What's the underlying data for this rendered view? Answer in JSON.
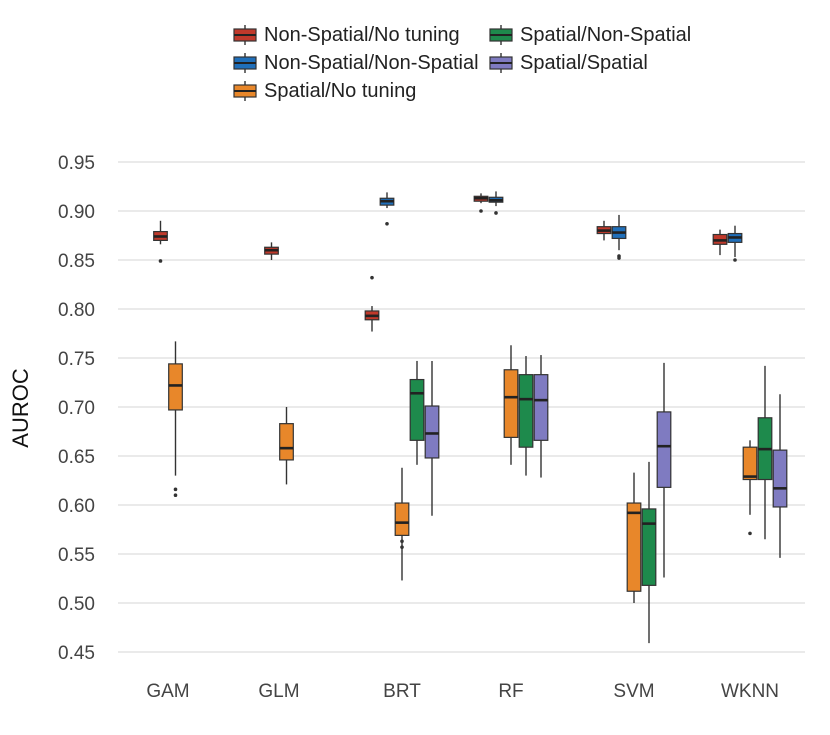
{
  "chart_data": {
    "type": "boxplot",
    "title": "",
    "xlabel": "",
    "ylabel": "AUROC",
    "ylim": [
      0.44,
      0.96
    ],
    "yticks": [
      "0.45",
      "0.50",
      "0.55",
      "0.60",
      "0.65",
      "0.70",
      "0.75",
      "0.80",
      "0.85",
      "0.90",
      "0.95"
    ],
    "categories": [
      "GAM",
      "GLM",
      "BRT",
      "RF",
      "SVM",
      "WKNN"
    ],
    "legend_position": "top",
    "series": [
      {
        "name": "Non-Spatial/No tuning",
        "color": "#c0392b",
        "boxes": [
          {
            "category": "GAM",
            "min": 0.866,
            "q1": 0.87,
            "median": 0.874,
            "q3": 0.879,
            "max": 0.89,
            "outliers": [
              0.849
            ]
          },
          {
            "category": "GLM",
            "min": 0.85,
            "q1": 0.856,
            "median": 0.86,
            "q3": 0.863,
            "max": 0.868,
            "outliers": []
          },
          {
            "category": "BRT",
            "min": 0.777,
            "q1": 0.789,
            "median": 0.793,
            "q3": 0.798,
            "max": 0.803,
            "outliers": [
              0.832
            ]
          },
          {
            "category": "RF",
            "min": 0.908,
            "q1": 0.91,
            "median": 0.913,
            "q3": 0.915,
            "max": 0.918,
            "outliers": [
              0.9
            ]
          },
          {
            "category": "SVM",
            "min": 0.87,
            "q1": 0.877,
            "median": 0.88,
            "q3": 0.884,
            "max": 0.89,
            "outliers": []
          },
          {
            "category": "WKNN",
            "min": 0.855,
            "q1": 0.866,
            "median": 0.87,
            "q3": 0.876,
            "max": 0.881,
            "outliers": []
          }
        ]
      },
      {
        "name": "Non-Spatial/Non-Spatial",
        "color": "#1f6fba",
        "boxes": [
          {
            "category": "BRT",
            "min": 0.903,
            "q1": 0.906,
            "median": 0.91,
            "q3": 0.913,
            "max": 0.919,
            "outliers": [
              0.887
            ]
          },
          {
            "category": "RF",
            "min": 0.905,
            "q1": 0.909,
            "median": 0.911,
            "q3": 0.914,
            "max": 0.92,
            "outliers": [
              0.898
            ]
          },
          {
            "category": "SVM",
            "min": 0.86,
            "q1": 0.872,
            "median": 0.878,
            "q3": 0.884,
            "max": 0.896,
            "outliers": [
              0.854,
              0.852
            ]
          },
          {
            "category": "WKNN",
            "min": 0.853,
            "q1": 0.868,
            "median": 0.873,
            "q3": 0.877,
            "max": 0.885,
            "outliers": [
              0.85
            ]
          }
        ]
      },
      {
        "name": "Spatial/No tuning",
        "color": "#e8872a",
        "boxes": [
          {
            "category": "GAM",
            "min": 0.63,
            "q1": 0.697,
            "median": 0.722,
            "q3": 0.744,
            "max": 0.767,
            "outliers": [
              0.616,
              0.61
            ]
          },
          {
            "category": "GLM",
            "min": 0.621,
            "q1": 0.646,
            "median": 0.658,
            "q3": 0.683,
            "max": 0.7,
            "outliers": []
          },
          {
            "category": "BRT",
            "min": 0.523,
            "q1": 0.569,
            "median": 0.582,
            "q3": 0.602,
            "max": 0.638,
            "outliers": [
              0.563,
              0.557
            ]
          },
          {
            "category": "RF",
            "min": 0.641,
            "q1": 0.669,
            "median": 0.71,
            "q3": 0.738,
            "max": 0.763,
            "outliers": []
          },
          {
            "category": "SVM",
            "min": 0.5,
            "q1": 0.512,
            "median": 0.592,
            "q3": 0.602,
            "max": 0.633,
            "outliers": []
          },
          {
            "category": "WKNN",
            "min": 0.59,
            "q1": 0.626,
            "median": 0.629,
            "q3": 0.659,
            "max": 0.666,
            "outliers": [
              0.571
            ]
          }
        ]
      },
      {
        "name": "Spatial/Non-Spatial",
        "color": "#1e8a4c",
        "boxes": [
          {
            "category": "BRT",
            "min": 0.641,
            "q1": 0.666,
            "median": 0.714,
            "q3": 0.728,
            "max": 0.747,
            "outliers": []
          },
          {
            "category": "RF",
            "min": 0.63,
            "q1": 0.659,
            "median": 0.708,
            "q3": 0.733,
            "max": 0.752,
            "outliers": []
          },
          {
            "category": "SVM",
            "min": 0.459,
            "q1": 0.518,
            "median": 0.581,
            "q3": 0.596,
            "max": 0.644,
            "outliers": []
          },
          {
            "category": "WKNN",
            "min": 0.565,
            "q1": 0.626,
            "median": 0.657,
            "q3": 0.689,
            "max": 0.742,
            "outliers": []
          }
        ]
      },
      {
        "name": "Spatial/Spatial",
        "color": "#7f7bc1",
        "boxes": [
          {
            "category": "BRT",
            "min": 0.589,
            "q1": 0.648,
            "median": 0.673,
            "q3": 0.701,
            "max": 0.747,
            "outliers": []
          },
          {
            "category": "RF",
            "min": 0.628,
            "q1": 0.666,
            "median": 0.707,
            "q3": 0.733,
            "max": 0.753,
            "outliers": []
          },
          {
            "category": "SVM",
            "min": 0.526,
            "q1": 0.618,
            "median": 0.66,
            "q3": 0.695,
            "max": 0.745,
            "outliers": []
          },
          {
            "category": "WKNN",
            "min": 0.546,
            "q1": 0.598,
            "median": 0.617,
            "q3": 0.656,
            "max": 0.713,
            "outliers": []
          }
        ]
      }
    ]
  }
}
